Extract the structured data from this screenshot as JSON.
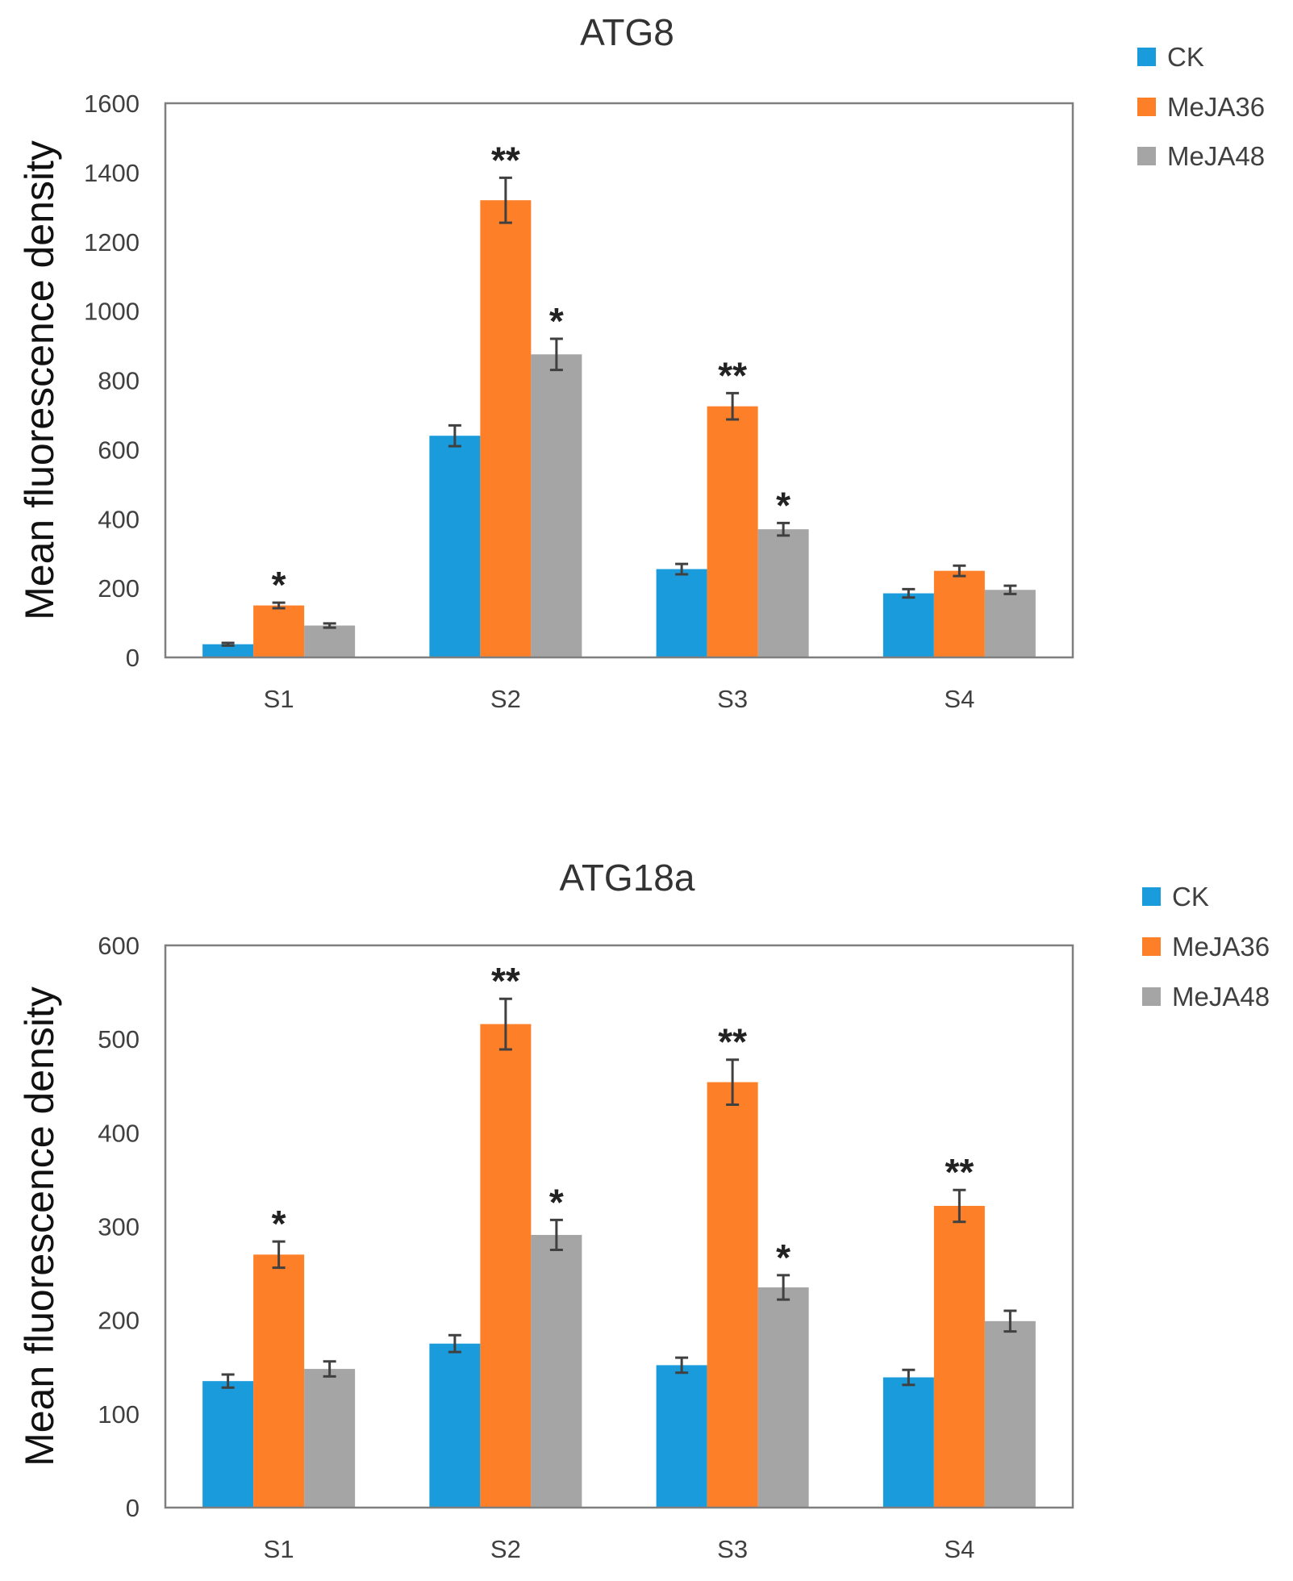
{
  "chart_data": [
    {
      "type": "bar",
      "title": "ATG8",
      "ylabel": "Mean fluorescence density",
      "xlabel": "",
      "categories": [
        "S1",
        "S2",
        "S3",
        "S4"
      ],
      "ylim": [
        0,
        1600
      ],
      "yticks": [
        0,
        200,
        400,
        600,
        800,
        1000,
        1200,
        1400,
        1600
      ],
      "legend_position": "top-right",
      "series": [
        {
          "name": "CK",
          "color": "#1a9bdb",
          "values": [
            38,
            640,
            255,
            185
          ],
          "errors": [
            4,
            30,
            15,
            12
          ],
          "marks": [
            "",
            "",
            "",
            ""
          ]
        },
        {
          "name": "MeJA36",
          "color": "#fd7f28",
          "values": [
            150,
            1320,
            725,
            250
          ],
          "errors": [
            8,
            65,
            38,
            15
          ],
          "marks": [
            "*",
            "**",
            "**",
            ""
          ]
        },
        {
          "name": "MeJA48",
          "color": "#a5a5a5",
          "values": [
            92,
            875,
            370,
            195
          ],
          "errors": [
            6,
            45,
            18,
            12
          ],
          "marks": [
            "",
            "*",
            "*",
            ""
          ]
        }
      ]
    },
    {
      "type": "bar",
      "title": "ATG18a",
      "ylabel": "Mean fluorescence density",
      "xlabel": "",
      "categories": [
        "S1",
        "S2",
        "S3",
        "S4"
      ],
      "ylim": [
        0,
        600
      ],
      "yticks": [
        0,
        100,
        200,
        300,
        400,
        500,
        600
      ],
      "legend_position": "top-right",
      "series": [
        {
          "name": "CK",
          "color": "#1a9bdb",
          "values": [
            135,
            175,
            152,
            139
          ],
          "errors": [
            7,
            9,
            8,
            8
          ],
          "marks": [
            "",
            "",
            "",
            ""
          ]
        },
        {
          "name": "MeJA36",
          "color": "#fd7f28",
          "values": [
            270,
            516,
            454,
            322
          ],
          "errors": [
            14,
            27,
            24,
            17
          ],
          "marks": [
            "*",
            "**",
            "**",
            "**"
          ]
        },
        {
          "name": "MeJA48",
          "color": "#a5a5a5",
          "values": [
            148,
            291,
            235,
            199
          ],
          "errors": [
            8,
            16,
            13,
            11
          ],
          "marks": [
            "",
            "*",
            "*",
            ""
          ]
        }
      ]
    }
  ]
}
